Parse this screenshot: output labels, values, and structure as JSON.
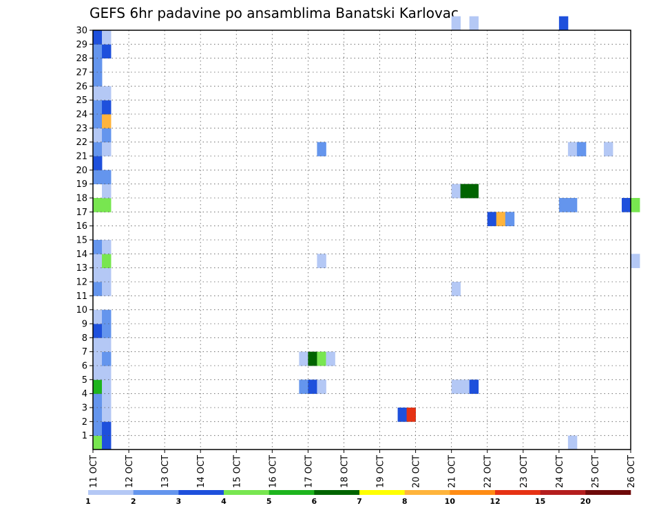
{
  "chart_data": {
    "type": "heatmap",
    "title": "GEFS 6hr padavine po ansamblima Banatski Karlovac",
    "xlabel": "",
    "ylabel": "",
    "x_ticks": [
      "11 OCT",
      "12 OCT",
      "13 OCT",
      "14 OCT",
      "15 OCT",
      "16 OCT",
      "17 OCT",
      "18 OCT",
      "19 OCT",
      "20 OCT",
      "21 OCT",
      "22 OCT",
      "23 OCT",
      "24 OCT",
      "25 OCT",
      "26 OCT"
    ],
    "y_ticks": [
      "1",
      "2",
      "3",
      "4",
      "5",
      "6",
      "7",
      "8",
      "9",
      "10",
      "11",
      "12",
      "13",
      "14",
      "15",
      "16",
      "17",
      "18",
      "19",
      "20",
      "21",
      "22",
      "23",
      "24",
      "25",
      "26",
      "27",
      "28",
      "29",
      "30"
    ],
    "xlim": [
      0,
      15
    ],
    "ylim": [
      0,
      30
    ],
    "step_days": 0.25,
    "grid": true,
    "levels": [
      1,
      2,
      3,
      4,
      5,
      6,
      7,
      8,
      10,
      12,
      15,
      20
    ],
    "colors": [
      "#b4c8f5",
      "#6495ed",
      "#1e50dc",
      "#78e650",
      "#1eb41e",
      "#006400",
      "#ffff00",
      "#ffb43c",
      "#ff8c14",
      "#e63214",
      "#b41e1e",
      "#6e0a0a"
    ],
    "cb_labels": [
      "1",
      "2",
      "3",
      "4",
      "5",
      "6",
      "7",
      "8",
      "10",
      "12",
      "15",
      "20"
    ],
    "cells": [
      [
        0,
        0,
        "#78e650"
      ],
      [
        0,
        1,
        "#6495ed"
      ],
      [
        0,
        2,
        "#6495ed"
      ],
      [
        0,
        3,
        "#6495ed"
      ],
      [
        0,
        4,
        "#1eb41e"
      ],
      [
        0,
        5,
        "#b4c8f5"
      ],
      [
        0,
        6,
        "#b4c8f5"
      ],
      [
        0,
        7,
        "#b4c8f5"
      ],
      [
        0,
        8,
        "#1e50dc"
      ],
      [
        0,
        9,
        "#b4c8f5"
      ],
      [
        0,
        11,
        "#6495ed"
      ],
      [
        0,
        12,
        "#b4c8f5"
      ],
      [
        0,
        13,
        "#b4c8f5"
      ],
      [
        0,
        14,
        "#6495ed"
      ],
      [
        0,
        17,
        "#78e650"
      ],
      [
        0,
        19,
        "#6495ed"
      ],
      [
        0,
        20,
        "#1e50dc"
      ],
      [
        0,
        21,
        "#6495ed"
      ],
      [
        0,
        22,
        "#b4c8f5"
      ],
      [
        0,
        23,
        "#6495ed"
      ],
      [
        0,
        24,
        "#6495ed"
      ],
      [
        0,
        25,
        "#b4c8f5"
      ],
      [
        0,
        26,
        "#6495ed"
      ],
      [
        0,
        27,
        "#6495ed"
      ],
      [
        0,
        28,
        "#6495ed"
      ],
      [
        0,
        29,
        "#1e50dc"
      ],
      [
        1,
        0,
        "#1e50dc"
      ],
      [
        1,
        1,
        "#1e50dc"
      ],
      [
        1,
        2,
        "#b4c8f5"
      ],
      [
        1,
        3,
        "#b4c8f5"
      ],
      [
        1,
        4,
        "#b4c8f5"
      ],
      [
        1,
        5,
        "#b4c8f5"
      ],
      [
        1,
        6,
        "#6495ed"
      ],
      [
        1,
        7,
        "#b4c8f5"
      ],
      [
        1,
        8,
        "#6495ed"
      ],
      [
        1,
        9,
        "#6495ed"
      ],
      [
        1,
        11,
        "#b4c8f5"
      ],
      [
        1,
        12,
        "#b4c8f5"
      ],
      [
        1,
        13,
        "#78e650"
      ],
      [
        1,
        14,
        "#b4c8f5"
      ],
      [
        1,
        17,
        "#78e650"
      ],
      [
        1,
        18,
        "#b4c8f5"
      ],
      [
        1,
        19,
        "#6495ed"
      ],
      [
        1,
        21,
        "#b4c8f5"
      ],
      [
        1,
        22,
        "#6495ed"
      ],
      [
        1,
        23,
        "#ffb43c"
      ],
      [
        1,
        24,
        "#1e50dc"
      ],
      [
        1,
        25,
        "#b4c8f5"
      ],
      [
        1,
        28,
        "#1e50dc"
      ],
      [
        1,
        29,
        "#b4c8f5"
      ],
      [
        23,
        4,
        "#6495ed"
      ],
      [
        23,
        6,
        "#b4c8f5"
      ],
      [
        24,
        4,
        "#1e50dc"
      ],
      [
        24,
        6,
        "#006400"
      ],
      [
        25,
        4,
        "#b4c8f5"
      ],
      [
        25,
        6,
        "#78e650"
      ],
      [
        26,
        6,
        "#b4c8f5"
      ],
      [
        25,
        13,
        "#b4c8f5"
      ],
      [
        25,
        21,
        "#6495ed"
      ],
      [
        34,
        2,
        "#1e50dc"
      ],
      [
        35,
        2,
        "#e63214"
      ],
      [
        40,
        4,
        "#b4c8f5"
      ],
      [
        40,
        11,
        "#b4c8f5"
      ],
      [
        40,
        18,
        "#b4c8f5"
      ],
      [
        40,
        30,
        "#b4c8f5"
      ],
      [
        41,
        4,
        "#b4c8f5"
      ],
      [
        41,
        18,
        "#006400"
      ],
      [
        42,
        4,
        "#1e50dc"
      ],
      [
        42,
        18,
        "#006400"
      ],
      [
        42,
        30,
        "#b4c8f5"
      ],
      [
        44,
        16,
        "#1e50dc"
      ],
      [
        45,
        16,
        "#ffb43c"
      ],
      [
        46,
        16,
        "#6495ed"
      ],
      [
        52,
        17,
        "#6495ed"
      ],
      [
        53,
        17,
        "#6495ed"
      ],
      [
        52,
        30,
        "#1e50dc"
      ],
      [
        53,
        0,
        "#b4c8f5"
      ],
      [
        53,
        21,
        "#b4c8f5"
      ],
      [
        54,
        21,
        "#6495ed"
      ],
      [
        57,
        21,
        "#b4c8f5"
      ],
      [
        59,
        17,
        "#1e50dc"
      ],
      [
        60,
        17,
        "#78e650"
      ],
      [
        60,
        13,
        "#b4c8f5"
      ]
    ]
  }
}
